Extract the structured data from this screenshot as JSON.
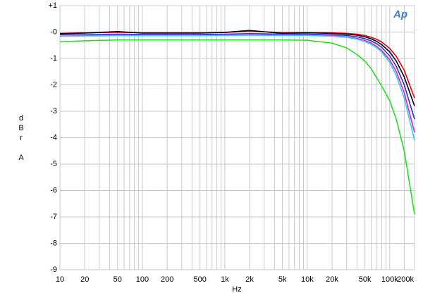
{
  "chart_data": {
    "type": "line",
    "logo": "Ap",
    "xlabel": "Hz",
    "ylabel": [
      "d",
      "B",
      "r",
      "A"
    ],
    "xlog": true,
    "grid": true,
    "xlim": [
      10,
      200000
    ],
    "ylim": [
      -9,
      1
    ],
    "xticks": [
      10,
      20,
      50,
      100,
      200,
      500,
      {
        "value": 1000,
        "label": "1k"
      },
      {
        "value": 2000,
        "label": "2k"
      },
      {
        "value": 5000,
        "label": "5k"
      },
      {
        "value": 10000,
        "label": "10k"
      },
      {
        "value": 20000,
        "label": "20k"
      },
      {
        "value": 50000,
        "label": "50k"
      },
      {
        "value": 100000,
        "label": "100k"
      },
      {
        "value": 200000,
        "label": "200k"
      }
    ],
    "xminor": [
      30,
      40,
      60,
      70,
      80,
      90,
      300,
      400,
      600,
      700,
      800,
      900,
      3000,
      4000,
      6000,
      7000,
      8000,
      9000,
      30000,
      40000,
      60000,
      70000,
      80000,
      90000,
      150000
    ],
    "yticks": [
      {
        "value": 1,
        "label": "+1"
      },
      {
        "value": 0,
        "label": "-0"
      },
      -1,
      -2,
      -3,
      -4,
      -5,
      -6,
      -7,
      -8,
      -9
    ],
    "x": [
      10,
      20,
      50,
      100,
      200,
      500,
      1000,
      2000,
      5000,
      10000,
      20000,
      30000,
      40000,
      50000,
      60000,
      70000,
      80000,
      100000,
      120000,
      150000,
      200000
    ],
    "series": [
      {
        "name": "red",
        "color": "#e0001a",
        "values": [
          -0.05,
          -0.03,
          -0.01,
          -0.03,
          -0.03,
          -0.03,
          -0.02,
          0.03,
          -0.02,
          -0.02,
          -0.03,
          -0.05,
          -0.08,
          -0.13,
          -0.2,
          -0.28,
          -0.38,
          -0.62,
          -0.92,
          -1.45,
          -2.5
        ]
      },
      {
        "name": "black",
        "color": "#000000",
        "values": [
          -0.06,
          -0.04,
          0.02,
          -0.04,
          -0.04,
          -0.04,
          -0.01,
          0.06,
          -0.05,
          -0.03,
          -0.05,
          -0.08,
          -0.12,
          -0.18,
          -0.26,
          -0.36,
          -0.48,
          -0.75,
          -1.1,
          -1.7,
          -2.8
        ]
      },
      {
        "name": "blue",
        "color": "#3030d0",
        "values": [
          -0.1,
          -0.1,
          -0.08,
          -0.09,
          -0.09,
          -0.09,
          -0.08,
          -0.06,
          -0.08,
          -0.08,
          -0.1,
          -0.13,
          -0.18,
          -0.25,
          -0.34,
          -0.45,
          -0.58,
          -0.9,
          -1.3,
          -2.0,
          -3.3
        ]
      },
      {
        "name": "magenta",
        "color": "#e020c0",
        "values": [
          -0.15,
          -0.14,
          -0.13,
          -0.13,
          -0.13,
          -0.13,
          -0.12,
          -0.11,
          -0.12,
          -0.12,
          -0.14,
          -0.18,
          -0.24,
          -0.32,
          -0.42,
          -0.55,
          -0.7,
          -1.05,
          -1.5,
          -2.3,
          -3.8
        ]
      },
      {
        "name": "cyan",
        "color": "#30d0f0",
        "values": [
          -0.16,
          -0.15,
          -0.14,
          -0.14,
          -0.14,
          -0.14,
          -0.13,
          -0.12,
          -0.13,
          -0.13,
          -0.16,
          -0.2,
          -0.27,
          -0.36,
          -0.47,
          -0.6,
          -0.76,
          -1.15,
          -1.65,
          -2.5,
          -4.1
        ]
      },
      {
        "name": "green",
        "color": "#20e020",
        "values": [
          -0.37,
          -0.33,
          -0.3,
          -0.3,
          -0.3,
          -0.3,
          -0.3,
          -0.3,
          -0.3,
          -0.31,
          -0.42,
          -0.6,
          -0.85,
          -1.1,
          -1.4,
          -1.75,
          -2.05,
          -2.6,
          -3.3,
          -4.5,
          -6.9
        ]
      }
    ]
  }
}
